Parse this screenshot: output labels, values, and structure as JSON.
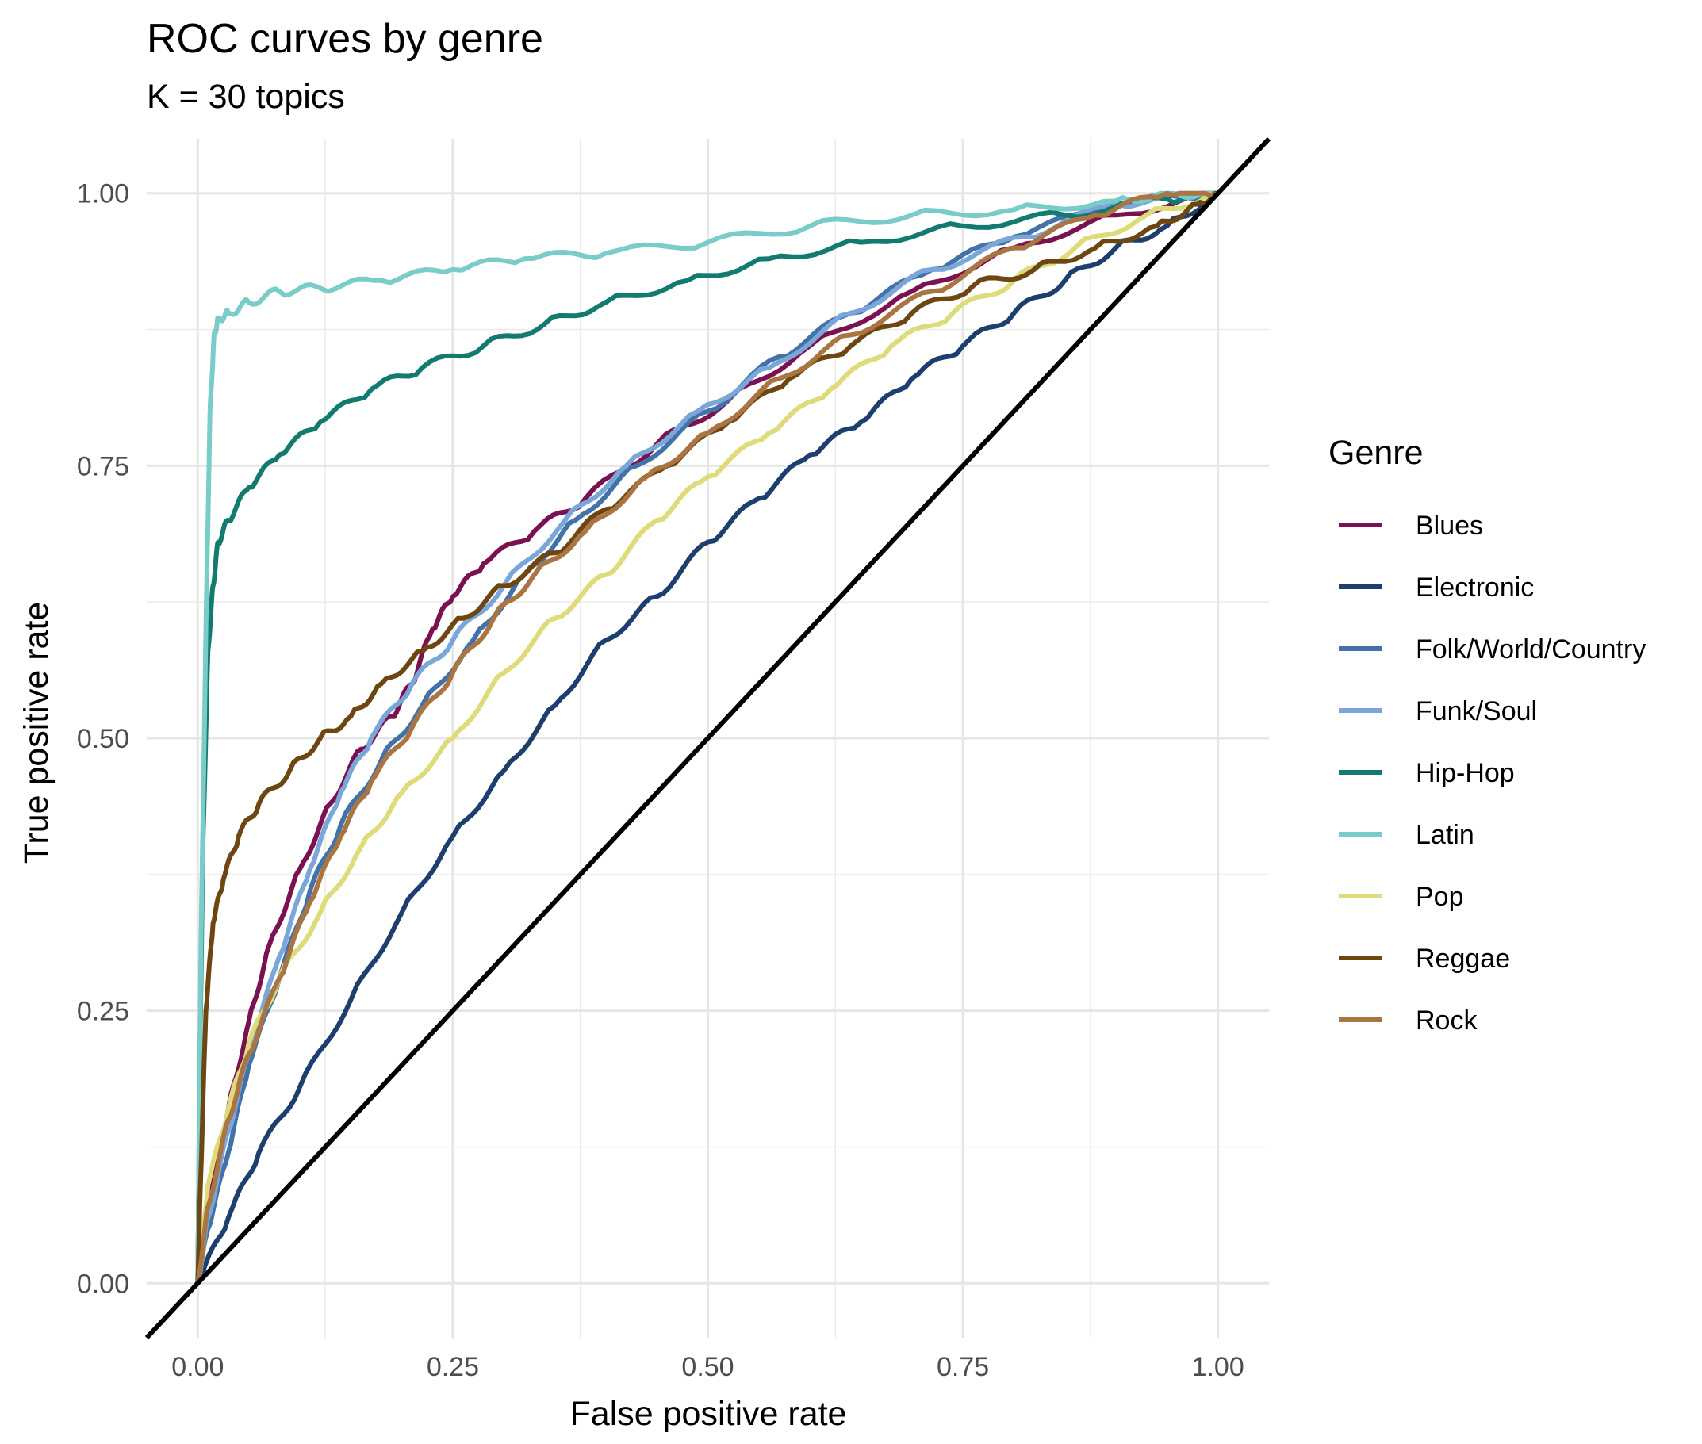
{
  "chart_data": {
    "type": "line",
    "title": "ROC curves by genre",
    "subtitle": "K = 30 topics",
    "xlabel": "False positive rate",
    "ylabel": "True positive rate",
    "xlim": [
      -0.05,
      1.05
    ],
    "ylim": [
      -0.05,
      1.05
    ],
    "xticks": [
      "0.00",
      "0.25",
      "0.50",
      "0.75",
      "1.00"
    ],
    "yticks": [
      "0.00",
      "0.25",
      "0.50",
      "0.75",
      "1.00"
    ],
    "grid": true,
    "legend": {
      "title": "Genre",
      "position": "right"
    },
    "reference_line": {
      "from": [
        -0.05,
        -0.05
      ],
      "to": [
        1.05,
        1.05
      ],
      "color": "#000000"
    },
    "series": [
      {
        "name": "Blues",
        "color": "#7B1150",
        "points": [
          [
            0,
            0
          ],
          [
            0.01,
            0.07
          ],
          [
            0.03,
            0.16
          ],
          [
            0.05,
            0.24
          ],
          [
            0.07,
            0.31
          ],
          [
            0.1,
            0.38
          ],
          [
            0.13,
            0.44
          ],
          [
            0.16,
            0.49
          ],
          [
            0.19,
            0.52
          ],
          [
            0.21,
            0.55
          ],
          [
            0.23,
            0.6
          ],
          [
            0.25,
            0.63
          ],
          [
            0.28,
            0.66
          ],
          [
            0.33,
            0.69
          ],
          [
            0.38,
            0.72
          ],
          [
            0.45,
            0.77
          ],
          [
            0.52,
            0.81
          ],
          [
            0.6,
            0.86
          ],
          [
            0.7,
            0.91
          ],
          [
            0.8,
            0.95
          ],
          [
            0.9,
            0.98
          ],
          [
            1.0,
            1.0
          ]
        ]
      },
      {
        "name": "Electronic",
        "color": "#1C3F6E",
        "points": [
          [
            0,
            0
          ],
          [
            0.03,
            0.06
          ],
          [
            0.06,
            0.12
          ],
          [
            0.1,
            0.18
          ],
          [
            0.15,
            0.26
          ],
          [
            0.2,
            0.34
          ],
          [
            0.25,
            0.41
          ],
          [
            0.3,
            0.47
          ],
          [
            0.35,
            0.53
          ],
          [
            0.4,
            0.59
          ],
          [
            0.45,
            0.63
          ],
          [
            0.5,
            0.68
          ],
          [
            0.55,
            0.72
          ],
          [
            0.6,
            0.76
          ],
          [
            0.65,
            0.79
          ],
          [
            0.7,
            0.83
          ],
          [
            0.75,
            0.86
          ],
          [
            0.8,
            0.89
          ],
          [
            0.85,
            0.92
          ],
          [
            0.9,
            0.95
          ],
          [
            0.95,
            0.97
          ],
          [
            1.0,
            1.0
          ]
        ]
      },
      {
        "name": "Folk/World/Country",
        "color": "#4272A8",
        "points": [
          [
            0,
            0
          ],
          [
            0.01,
            0.05
          ],
          [
            0.03,
            0.12
          ],
          [
            0.05,
            0.2
          ],
          [
            0.08,
            0.28
          ],
          [
            0.11,
            0.36
          ],
          [
            0.14,
            0.42
          ],
          [
            0.18,
            0.48
          ],
          [
            0.22,
            0.53
          ],
          [
            0.27,
            0.59
          ],
          [
            0.32,
            0.65
          ],
          [
            0.37,
            0.7
          ],
          [
            0.43,
            0.75
          ],
          [
            0.5,
            0.8
          ],
          [
            0.57,
            0.85
          ],
          [
            0.64,
            0.89
          ],
          [
            0.72,
            0.93
          ],
          [
            0.8,
            0.96
          ],
          [
            0.9,
            0.99
          ],
          [
            1.0,
            1.0
          ]
        ]
      },
      {
        "name": "Funk/Soul",
        "color": "#7AA6D8",
        "points": [
          [
            0,
            0
          ],
          [
            0.01,
            0.06
          ],
          [
            0.03,
            0.14
          ],
          [
            0.05,
            0.21
          ],
          [
            0.08,
            0.3
          ],
          [
            0.11,
            0.38
          ],
          [
            0.14,
            0.45
          ],
          [
            0.17,
            0.5
          ],
          [
            0.21,
            0.55
          ],
          [
            0.25,
            0.59
          ],
          [
            0.3,
            0.64
          ],
          [
            0.36,
            0.7
          ],
          [
            0.42,
            0.75
          ],
          [
            0.49,
            0.8
          ],
          [
            0.56,
            0.84
          ],
          [
            0.64,
            0.89
          ],
          [
            0.72,
            0.93
          ],
          [
            0.81,
            0.96
          ],
          [
            0.9,
            0.99
          ],
          [
            1.0,
            1.0
          ]
        ]
      },
      {
        "name": "Hip-Hop",
        "color": "#137A70",
        "points": [
          [
            0,
            0
          ],
          [
            0.002,
            0.2
          ],
          [
            0.005,
            0.4
          ],
          [
            0.01,
            0.58
          ],
          [
            0.015,
            0.64
          ],
          [
            0.02,
            0.68
          ],
          [
            0.03,
            0.7
          ],
          [
            0.05,
            0.73
          ],
          [
            0.08,
            0.76
          ],
          [
            0.12,
            0.79
          ],
          [
            0.17,
            0.82
          ],
          [
            0.22,
            0.84
          ],
          [
            0.28,
            0.86
          ],
          [
            0.34,
            0.88
          ],
          [
            0.4,
            0.9
          ],
          [
            0.48,
            0.92
          ],
          [
            0.56,
            0.94
          ],
          [
            0.65,
            0.955
          ],
          [
            0.75,
            0.97
          ],
          [
            0.85,
            0.98
          ],
          [
            0.95,
            0.995
          ],
          [
            1.0,
            1.0
          ]
        ]
      },
      {
        "name": "Latin",
        "color": "#79CCC7",
        "points": [
          [
            0,
            0
          ],
          [
            0.003,
            0.3
          ],
          [
            0.008,
            0.6
          ],
          [
            0.012,
            0.8
          ],
          [
            0.016,
            0.87
          ],
          [
            0.02,
            0.885
          ],
          [
            0.03,
            0.89
          ],
          [
            0.05,
            0.9
          ],
          [
            0.08,
            0.91
          ],
          [
            0.12,
            0.913
          ],
          [
            0.18,
            0.92
          ],
          [
            0.25,
            0.93
          ],
          [
            0.32,
            0.94
          ],
          [
            0.4,
            0.945
          ],
          [
            0.5,
            0.955
          ],
          [
            0.6,
            0.97
          ],
          [
            0.7,
            0.98
          ],
          [
            0.8,
            0.985
          ],
          [
            0.9,
            0.993
          ],
          [
            0.95,
            1.0
          ],
          [
            1.0,
            1.0
          ]
        ]
      },
      {
        "name": "Pop",
        "color": "#DDDB7A",
        "points": [
          [
            0,
            0
          ],
          [
            0.01,
            0.09
          ],
          [
            0.03,
            0.16
          ],
          [
            0.05,
            0.22
          ],
          [
            0.08,
            0.28
          ],
          [
            0.12,
            0.34
          ],
          [
            0.16,
            0.4
          ],
          [
            0.2,
            0.45
          ],
          [
            0.25,
            0.5
          ],
          [
            0.3,
            0.56
          ],
          [
            0.35,
            0.61
          ],
          [
            0.4,
            0.65
          ],
          [
            0.45,
            0.7
          ],
          [
            0.5,
            0.74
          ],
          [
            0.56,
            0.78
          ],
          [
            0.62,
            0.82
          ],
          [
            0.68,
            0.86
          ],
          [
            0.74,
            0.89
          ],
          [
            0.8,
            0.92
          ],
          [
            0.86,
            0.95
          ],
          [
            0.93,
            0.98
          ],
          [
            1.0,
            1.0
          ]
        ]
      },
      {
        "name": "Reggae",
        "color": "#6E4612",
        "points": [
          [
            0,
            0
          ],
          [
            0.003,
            0.1
          ],
          [
            0.008,
            0.25
          ],
          [
            0.015,
            0.33
          ],
          [
            0.025,
            0.37
          ],
          [
            0.04,
            0.41
          ],
          [
            0.06,
            0.44
          ],
          [
            0.09,
            0.47
          ],
          [
            0.12,
            0.5
          ],
          [
            0.15,
            0.52
          ],
          [
            0.18,
            0.55
          ],
          [
            0.22,
            0.58
          ],
          [
            0.26,
            0.61
          ],
          [
            0.3,
            0.64
          ],
          [
            0.35,
            0.67
          ],
          [
            0.4,
            0.71
          ],
          [
            0.46,
            0.75
          ],
          [
            0.52,
            0.79
          ],
          [
            0.58,
            0.83
          ],
          [
            0.64,
            0.86
          ],
          [
            0.7,
            0.89
          ],
          [
            0.76,
            0.915
          ],
          [
            0.82,
            0.93
          ],
          [
            0.88,
            0.95
          ],
          [
            0.94,
            0.97
          ],
          [
            0.98,
            0.99
          ],
          [
            1.0,
            1.0
          ]
        ]
      },
      {
        "name": "Rock",
        "color": "#A97543",
        "points": [
          [
            0,
            0
          ],
          [
            0.01,
            0.07
          ],
          [
            0.03,
            0.15
          ],
          [
            0.05,
            0.21
          ],
          [
            0.08,
            0.28
          ],
          [
            0.11,
            0.35
          ],
          [
            0.14,
            0.41
          ],
          [
            0.17,
            0.46
          ],
          [
            0.21,
            0.51
          ],
          [
            0.25,
            0.56
          ],
          [
            0.29,
            0.61
          ],
          [
            0.33,
            0.65
          ],
          [
            0.38,
            0.69
          ],
          [
            0.44,
            0.74
          ],
          [
            0.5,
            0.78
          ],
          [
            0.57,
            0.83
          ],
          [
            0.64,
            0.87
          ],
          [
            0.72,
            0.91
          ],
          [
            0.8,
            0.95
          ],
          [
            0.88,
            0.98
          ],
          [
            0.95,
            1.0
          ],
          [
            1.0,
            1.0
          ]
        ]
      }
    ]
  }
}
